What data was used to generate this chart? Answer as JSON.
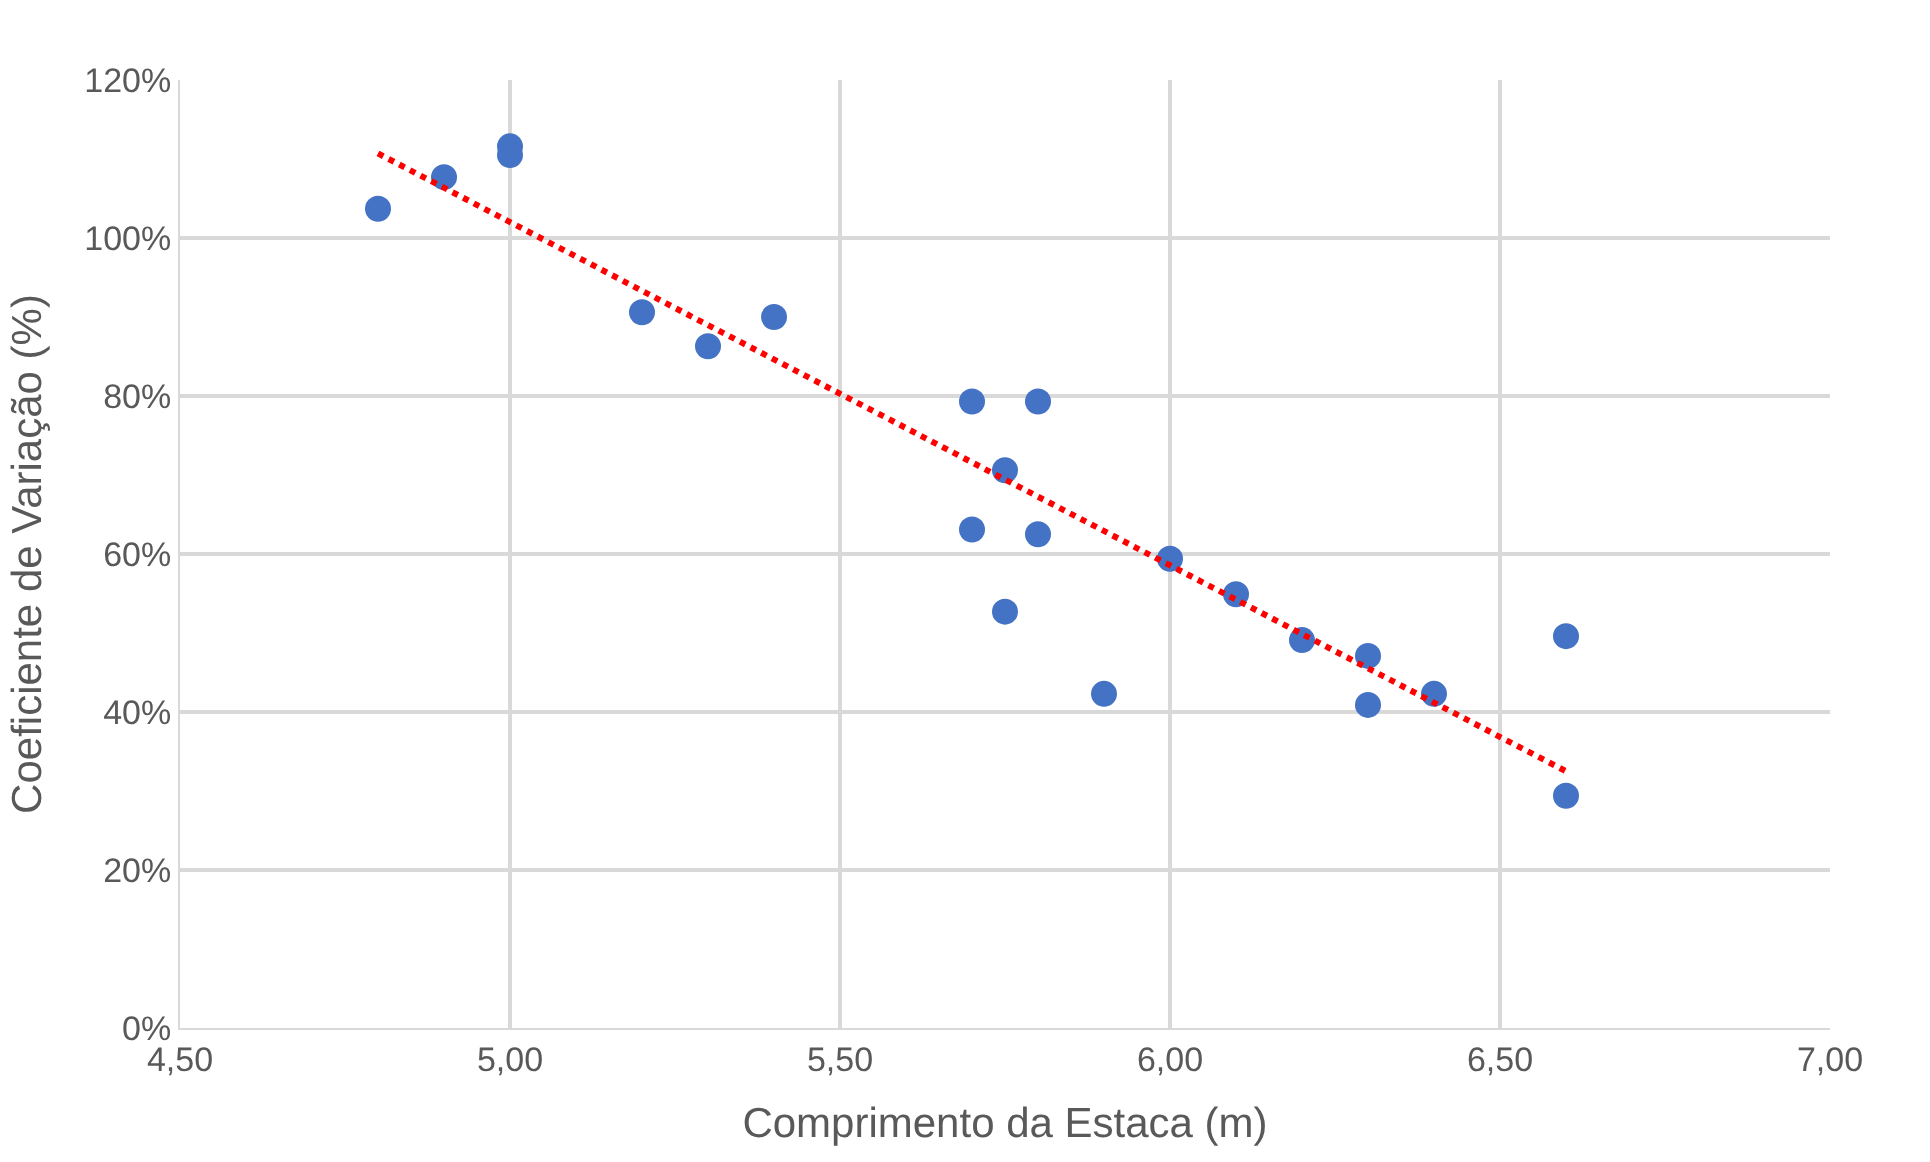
{
  "chart_data": {
    "type": "scatter",
    "xlabel": "Comprimento da Estaca (m)",
    "ylabel": "Coeficiente de Variação (%)",
    "xlim": [
      4.5,
      7.0
    ],
    "ylim": [
      0,
      120
    ],
    "xticks": [
      {
        "value": 4.5,
        "label": "4,50"
      },
      {
        "value": 5.0,
        "label": "5,00"
      },
      {
        "value": 5.5,
        "label": "5,50"
      },
      {
        "value": 6.0,
        "label": "6,00"
      },
      {
        "value": 6.5,
        "label": "6,50"
      },
      {
        "value": 7.0,
        "label": "7,00"
      }
    ],
    "yticks": [
      {
        "value": 0,
        "label": "0%"
      },
      {
        "value": 20,
        "label": "20%"
      },
      {
        "value": 40,
        "label": "40%"
      },
      {
        "value": 60,
        "label": "60%"
      },
      {
        "value": 80,
        "label": "80%"
      },
      {
        "value": 100,
        "label": "100%"
      },
      {
        "value": 120,
        "label": "120%"
      }
    ],
    "grid": true,
    "series": [
      {
        "marker": "circle",
        "color": "#4472c4",
        "x": [
          4.8,
          4.9,
          5.0,
          5.0,
          5.2,
          5.3,
          5.4,
          5.7,
          5.8,
          5.75,
          5.7,
          5.8,
          5.75,
          5.9,
          6.0,
          6.1,
          6.2,
          6.3,
          6.3,
          6.4,
          6.6,
          6.6
        ],
        "values": [
          103.7,
          107.7,
          111.6,
          110.5,
          90.6,
          86.3,
          90.0,
          79.3,
          79.3,
          70.6,
          63.1,
          62.5,
          52.7,
          42.3,
          59.4,
          54.9,
          49.1,
          47.1,
          40.9,
          42.3,
          49.6,
          29.4
        ]
      },
      {
        "type": "line",
        "color": "#ff0000",
        "line_style": "dotted",
        "x": [
          4.8,
          6.6
        ],
        "values": [
          110.7,
          32.5
        ]
      }
    ]
  }
}
